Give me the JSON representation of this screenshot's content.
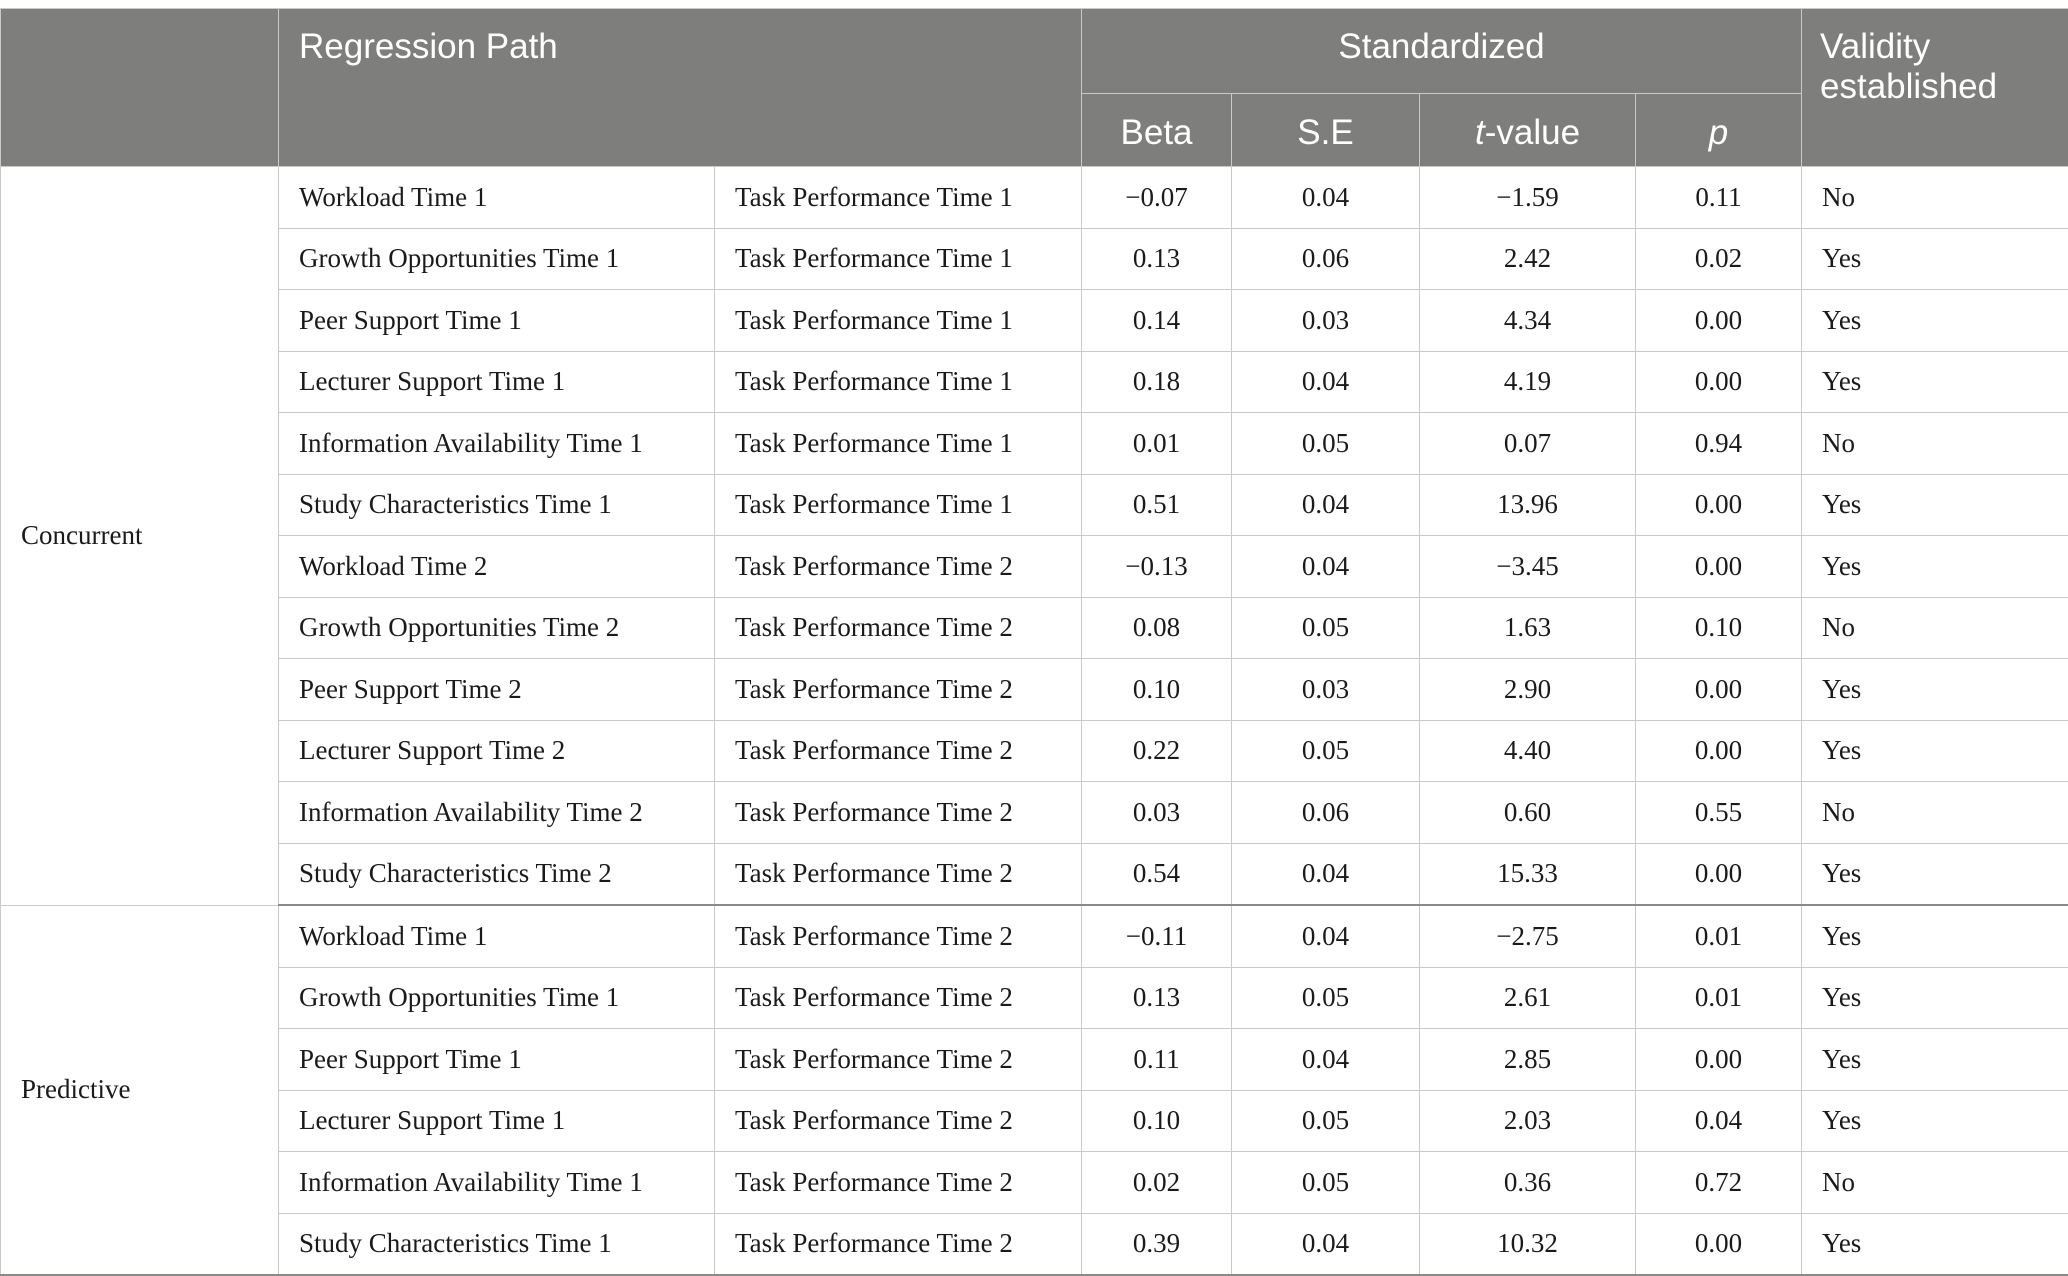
{
  "header": {
    "regression_path": "Regression Path",
    "standardized": "Standardized",
    "validity": "Validity established",
    "beta": "Beta",
    "se": "S.E",
    "t_value_prefix": "t",
    "t_value_suffix": "-value",
    "p": "p"
  },
  "groups": [
    {
      "label": "Concurrent",
      "rows": [
        {
          "from": "Workload Time 1",
          "to": "Task Performance Time 1",
          "beta": "−0.07",
          "se": "0.04",
          "t": "−1.59",
          "p": "0.11",
          "valid": "No"
        },
        {
          "from": "Growth Opportunities Time 1",
          "to": "Task Performance Time 1",
          "beta": "0.13",
          "se": "0.06",
          "t": "2.42",
          "p": "0.02",
          "valid": "Yes"
        },
        {
          "from": "Peer Support Time 1",
          "to": "Task Performance Time 1",
          "beta": "0.14",
          "se": "0.03",
          "t": "4.34",
          "p": "0.00",
          "valid": "Yes"
        },
        {
          "from": "Lecturer Support Time 1",
          "to": "Task Performance Time 1",
          "beta": "0.18",
          "se": "0.04",
          "t": "4.19",
          "p": "0.00",
          "valid": "Yes"
        },
        {
          "from": "Information Availability Time 1",
          "to": "Task Performance Time 1",
          "beta": "0.01",
          "se": "0.05",
          "t": "0.07",
          "p": "0.94",
          "valid": "No"
        },
        {
          "from": "Study Characteristics Time 1",
          "to": "Task Performance Time 1",
          "beta": "0.51",
          "se": "0.04",
          "t": "13.96",
          "p": "0.00",
          "valid": "Yes"
        },
        {
          "from": "Workload Time 2",
          "to": "Task Performance Time 2",
          "beta": "−0.13",
          "se": "0.04",
          "t": "−3.45",
          "p": "0.00",
          "valid": "Yes"
        },
        {
          "from": "Growth Opportunities Time 2",
          "to": "Task Performance Time 2",
          "beta": "0.08",
          "se": "0.05",
          "t": "1.63",
          "p": "0.10",
          "valid": "No"
        },
        {
          "from": "Peer Support Time 2",
          "to": "Task Performance Time 2",
          "beta": "0.10",
          "se": "0.03",
          "t": "2.90",
          "p": "0.00",
          "valid": "Yes"
        },
        {
          "from": "Lecturer Support Time 2",
          "to": "Task Performance Time 2",
          "beta": "0.22",
          "se": "0.05",
          "t": "4.40",
          "p": "0.00",
          "valid": "Yes"
        },
        {
          "from": "Information Availability Time 2",
          "to": "Task Performance Time 2",
          "beta": "0.03",
          "se": "0.06",
          "t": "0.60",
          "p": "0.55",
          "valid": "No"
        },
        {
          "from": "Study Characteristics Time 2",
          "to": "Task Performance Time 2",
          "beta": "0.54",
          "se": "0.04",
          "t": "15.33",
          "p": "0.00",
          "valid": "Yes"
        }
      ]
    },
    {
      "label": "Predictive",
      "rows": [
        {
          "from": "Workload Time 1",
          "to": "Task Performance Time 2",
          "beta": "−0.11",
          "se": "0.04",
          "t": "−2.75",
          "p": "0.01",
          "valid": "Yes"
        },
        {
          "from": "Growth Opportunities Time 1",
          "to": "Task Performance Time 2",
          "beta": "0.13",
          "se": "0.05",
          "t": "2.61",
          "p": "0.01",
          "valid": "Yes"
        },
        {
          "from": "Peer Support Time 1",
          "to": "Task Performance Time 2",
          "beta": "0.11",
          "se": "0.04",
          "t": "2.85",
          "p": "0.00",
          "valid": "Yes"
        },
        {
          "from": "Lecturer Support Time 1",
          "to": "Task Performance Time 2",
          "beta": "0.10",
          "se": "0.05",
          "t": "2.03",
          "p": "0.04",
          "valid": "Yes"
        },
        {
          "from": "Information Availability Time 1",
          "to": "Task Performance Time 2",
          "beta": "0.02",
          "se": "0.05",
          "t": "0.36",
          "p": "0.72",
          "valid": "No"
        },
        {
          "from": "Study Characteristics Time 1",
          "to": "Task Performance Time 2",
          "beta": "0.39",
          "se": "0.04",
          "t": "10.32",
          "p": "0.00",
          "valid": "Yes"
        }
      ]
    }
  ]
}
